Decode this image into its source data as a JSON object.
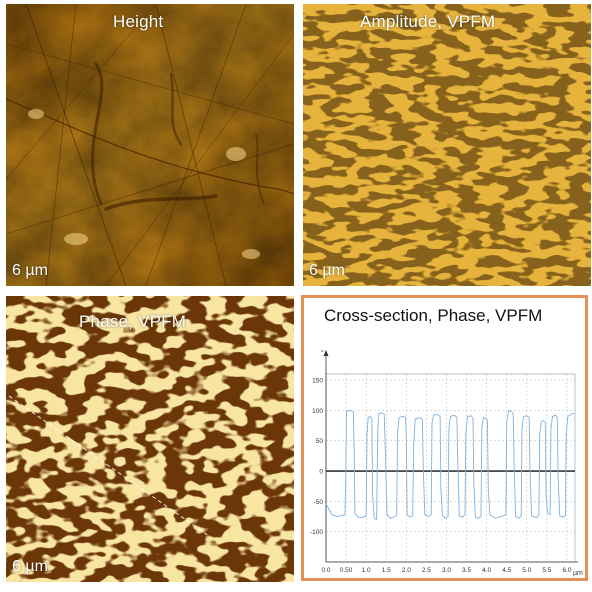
{
  "panels": {
    "height": {
      "title": "Height",
      "scale": "6 µm"
    },
    "amplitude": {
      "title": "Amplitude, VPFM",
      "scale": "6 µm"
    },
    "phase": {
      "title": "Phase, VPFM",
      "scale": "6 µm"
    },
    "cross": {
      "title": "Cross-section,  Phase, VPFM",
      "y_unit": "°",
      "x_unit": "µm"
    }
  },
  "colors": {
    "afm_dark": "#5a2f06",
    "afm_mid": "#b8780e",
    "afm_light": "#f2cd6a",
    "frame": "#e0925a",
    "trace": "#7fb2df"
  },
  "chart_data": {
    "type": "line",
    "title": "Cross-section,  Phase, VPFM",
    "xlabel": "µm",
    "ylabel": "°",
    "xlim": [
      0,
      6.2
    ],
    "ylim": [
      -150,
      160
    ],
    "x_ticks": [
      "0.0",
      "0.50",
      "1.0",
      "1.5",
      "2.0",
      "2.5",
      "3.0",
      "3.5",
      "4.0",
      "4.5",
      "5.0",
      "5.5",
      "6.0"
    ],
    "y_ticks": [
      "150",
      "100",
      "50",
      "0",
      "-50",
      "-100"
    ],
    "grid": true,
    "series": [
      {
        "values": [
          [
            0.0,
            -55
          ],
          [
            0.05,
            -60
          ],
          [
            0.15,
            -72
          ],
          [
            0.28,
            -75
          ],
          [
            0.4,
            -73
          ],
          [
            0.47,
            -72
          ],
          [
            0.49,
            -20
          ],
          [
            0.51,
            98
          ],
          [
            0.55,
            100
          ],
          [
            0.65,
            99
          ],
          [
            0.68,
            97
          ],
          [
            0.7,
            40
          ],
          [
            0.72,
            -70
          ],
          [
            0.8,
            -76
          ],
          [
            0.9,
            -77
          ],
          [
            1.0,
            -74
          ],
          [
            1.02,
            60
          ],
          [
            1.05,
            88
          ],
          [
            1.1,
            90
          ],
          [
            1.14,
            86
          ],
          [
            1.16,
            -40
          ],
          [
            1.2,
            -78
          ],
          [
            1.26,
            -80
          ],
          [
            1.29,
            70
          ],
          [
            1.32,
            95
          ],
          [
            1.4,
            96
          ],
          [
            1.45,
            94
          ],
          [
            1.48,
            30
          ],
          [
            1.52,
            -72
          ],
          [
            1.6,
            -78
          ],
          [
            1.72,
            -75
          ],
          [
            1.76,
            -72
          ],
          [
            1.78,
            60
          ],
          [
            1.82,
            88
          ],
          [
            1.9,
            90
          ],
          [
            1.98,
            89
          ],
          [
            2.0,
            60
          ],
          [
            2.02,
            -72
          ],
          [
            2.1,
            -76
          ],
          [
            2.16,
            -74
          ],
          [
            2.18,
            40
          ],
          [
            2.22,
            86
          ],
          [
            2.35,
            88
          ],
          [
            2.4,
            85
          ],
          [
            2.42,
            10
          ],
          [
            2.46,
            -72
          ],
          [
            2.55,
            -75
          ],
          [
            2.62,
            -72
          ],
          [
            2.64,
            80
          ],
          [
            2.68,
            92
          ],
          [
            2.78,
            93
          ],
          [
            2.84,
            90
          ],
          [
            2.86,
            -30
          ],
          [
            2.9,
            -74
          ],
          [
            2.98,
            -78
          ],
          [
            3.04,
            -75
          ],
          [
            3.06,
            70
          ],
          [
            3.1,
            90
          ],
          [
            3.2,
            92
          ],
          [
            3.26,
            88
          ],
          [
            3.28,
            20
          ],
          [
            3.32,
            -74
          ],
          [
            3.4,
            -76
          ],
          [
            3.46,
            -72
          ],
          [
            3.48,
            60
          ],
          [
            3.52,
            90
          ],
          [
            3.62,
            91
          ],
          [
            3.66,
            86
          ],
          [
            3.68,
            -20
          ],
          [
            3.72,
            -76
          ],
          [
            3.8,
            -78
          ],
          [
            3.86,
            -74
          ],
          [
            3.88,
            70
          ],
          [
            3.92,
            88
          ],
          [
            3.98,
            87
          ],
          [
            4.02,
            84
          ],
          [
            4.04,
            -30
          ],
          [
            4.08,
            -72
          ],
          [
            4.22,
            -78
          ],
          [
            4.4,
            -74
          ],
          [
            4.48,
            -72
          ],
          [
            4.5,
            80
          ],
          [
            4.55,
            100
          ],
          [
            4.62,
            98
          ],
          [
            4.66,
            95
          ],
          [
            4.68,
            20
          ],
          [
            4.72,
            -75
          ],
          [
            4.8,
            -78
          ],
          [
            4.86,
            -74
          ],
          [
            4.88,
            70
          ],
          [
            4.92,
            90
          ],
          [
            5.0,
            91
          ],
          [
            5.06,
            88
          ],
          [
            5.08,
            0
          ],
          [
            5.12,
            -74
          ],
          [
            5.24,
            -77
          ],
          [
            5.3,
            -73
          ],
          [
            5.32,
            60
          ],
          [
            5.36,
            82
          ],
          [
            5.42,
            83
          ],
          [
            5.46,
            80
          ],
          [
            5.48,
            -40
          ],
          [
            5.52,
            -70
          ],
          [
            5.58,
            -72
          ],
          [
            5.6,
            70
          ],
          [
            5.64,
            90
          ],
          [
            5.72,
            92
          ],
          [
            5.76,
            88
          ],
          [
            5.78,
            -10
          ],
          [
            5.82,
            -74
          ],
          [
            5.9,
            -76
          ],
          [
            5.96,
            -74
          ],
          [
            5.98,
            60
          ],
          [
            6.02,
            90
          ],
          [
            6.1,
            94
          ],
          [
            6.18,
            95
          ]
        ]
      }
    ]
  }
}
